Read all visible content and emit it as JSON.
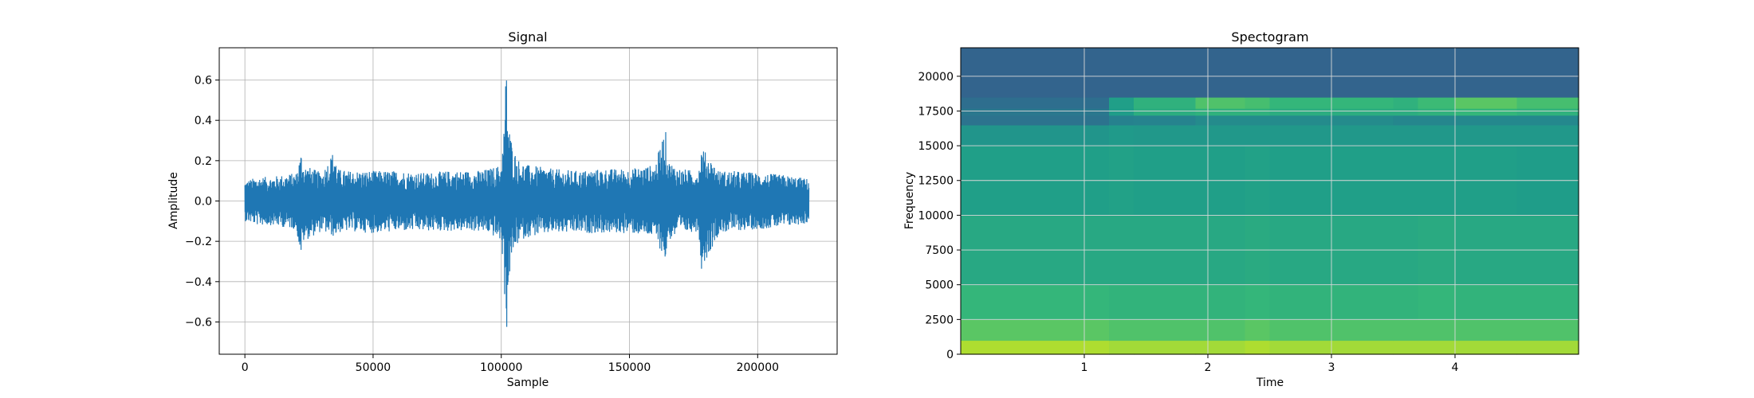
{
  "chart_data": [
    {
      "type": "line",
      "title": "Signal",
      "xlabel": "Sample",
      "ylabel": "Amplitude",
      "xlim": [
        -10000,
        231000
      ],
      "ylim": [
        -0.76,
        0.76
      ],
      "xticks": [
        0,
        50000,
        100000,
        150000,
        200000
      ],
      "xtick_labels": [
        "0",
        "50000",
        "100000",
        "150000",
        "200000"
      ],
      "yticks": [
        -0.6,
        -0.4,
        -0.2,
        0.0,
        0.2,
        0.4,
        0.6
      ],
      "ytick_labels": [
        "−0.6",
        "−0.4",
        "−0.2",
        "0.0",
        "0.2",
        "0.4",
        "0.6"
      ],
      "grid": true,
      "color": "#1f77b4",
      "series": [
        {
          "x": [
            0,
            5000,
            10000,
            15000,
            20000,
            22000,
            23000,
            30000,
            35000,
            36000,
            40000,
            50000,
            60000,
            70000,
            80000,
            90000,
            95000,
            100000,
            101000,
            102000,
            102500,
            103000,
            104000,
            105000,
            107000,
            110000,
            120000,
            130000,
            140000,
            150000,
            155000,
            160000,
            164000,
            165000,
            170000,
            177000,
            178000,
            185000,
            190000,
            200000,
            210000,
            220000
          ],
          "envelope_max": [
            0.1,
            0.12,
            0.12,
            0.13,
            0.14,
            0.25,
            0.18,
            0.14,
            0.26,
            0.16,
            0.15,
            0.15,
            0.15,
            0.14,
            0.15,
            0.15,
            0.16,
            0.18,
            0.35,
            0.7,
            0.45,
            0.38,
            0.3,
            0.25,
            0.2,
            0.18,
            0.16,
            0.15,
            0.16,
            0.16,
            0.17,
            0.18,
            0.37,
            0.2,
            0.16,
            0.15,
            0.27,
            0.15,
            0.15,
            0.14,
            0.13,
            0.11
          ],
          "envelope_min": [
            -0.1,
            -0.12,
            -0.12,
            -0.13,
            -0.14,
            -0.28,
            -0.2,
            -0.15,
            -0.18,
            -0.16,
            -0.15,
            -0.16,
            -0.15,
            -0.15,
            -0.15,
            -0.15,
            -0.16,
            -0.2,
            -0.38,
            -0.7,
            -0.5,
            -0.4,
            -0.3,
            -0.25,
            -0.2,
            -0.18,
            -0.16,
            -0.16,
            -0.16,
            -0.16,
            -0.17,
            -0.18,
            -0.3,
            -0.2,
            -0.16,
            -0.15,
            -0.34,
            -0.16,
            -0.15,
            -0.14,
            -0.13,
            -0.11
          ]
        }
      ]
    },
    {
      "type": "heatmap",
      "title": "Spectogram",
      "xlabel": "Time",
      "ylabel": "Frequency",
      "xlim": [
        0,
        5.0
      ],
      "ylim": [
        0,
        22050
      ],
      "xticks": [
        1,
        2,
        3,
        4
      ],
      "xtick_labels": [
        "1",
        "2",
        "3",
        "4"
      ],
      "yticks": [
        0,
        2500,
        5000,
        7500,
        10000,
        12500,
        15000,
        17500,
        20000
      ],
      "ytick_labels": [
        "0",
        "2500",
        "5000",
        "7500",
        "10000",
        "12500",
        "15000",
        "17500",
        "20000"
      ],
      "grid": true,
      "colormap": "viridis",
      "time_boundaries": [
        0,
        1.2,
        1.4,
        1.9,
        2.3,
        2.5,
        3.5,
        3.7,
        4.0,
        4.5,
        5.0
      ],
      "freq_boundaries": [
        0,
        1000,
        2500,
        5000,
        10000,
        15000,
        16500,
        17200,
        17700,
        18500,
        22050
      ],
      "intensity": [
        [
          0.88,
          0.86,
          0.86,
          0.86,
          0.88,
          0.86,
          0.86,
          0.86,
          0.86,
          0.86
        ],
        [
          0.74,
          0.72,
          0.72,
          0.72,
          0.74,
          0.72,
          0.72,
          0.72,
          0.72,
          0.72
        ],
        [
          0.66,
          0.65,
          0.65,
          0.65,
          0.66,
          0.65,
          0.65,
          0.66,
          0.65,
          0.65
        ],
        [
          0.6,
          0.6,
          0.6,
          0.6,
          0.61,
          0.6,
          0.6,
          0.61,
          0.6,
          0.6
        ],
        [
          0.56,
          0.57,
          0.56,
          0.56,
          0.57,
          0.56,
          0.56,
          0.56,
          0.56,
          0.55
        ],
        [
          0.52,
          0.54,
          0.53,
          0.53,
          0.53,
          0.53,
          0.53,
          0.53,
          0.53,
          0.53
        ],
        [
          0.38,
          0.44,
          0.45,
          0.48,
          0.48,
          0.48,
          0.46,
          0.46,
          0.47,
          0.47
        ],
        [
          0.4,
          0.55,
          0.62,
          0.64,
          0.64,
          0.62,
          0.62,
          0.64,
          0.66,
          0.64
        ],
        [
          0.36,
          0.56,
          0.64,
          0.72,
          0.7,
          0.66,
          0.64,
          0.68,
          0.74,
          0.7
        ],
        [
          0.32,
          0.32,
          0.32,
          0.32,
          0.32,
          0.32,
          0.32,
          0.32,
          0.32,
          0.32
        ]
      ]
    }
  ]
}
